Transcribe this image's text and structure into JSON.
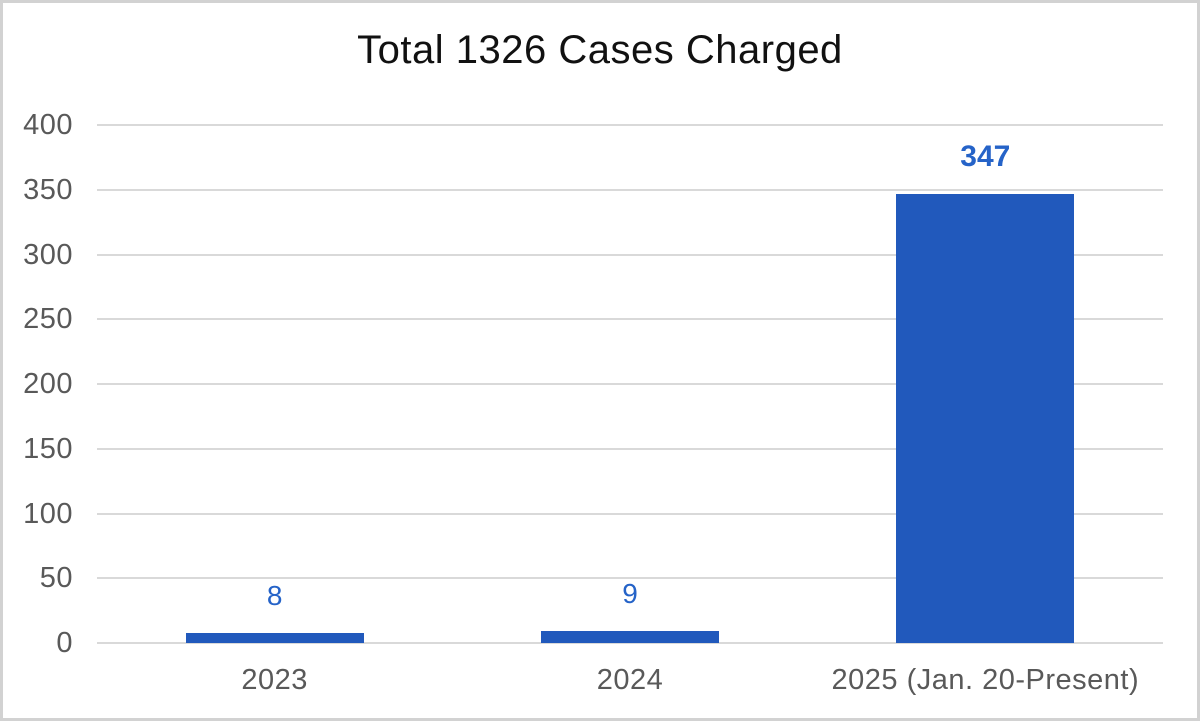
{
  "chart_data": {
    "type": "bar",
    "title": "Total 1326 Cases Charged",
    "categories": [
      "2023",
      "2024",
      "2025 (Jan. 20-Present)"
    ],
    "values": [
      8,
      9,
      347
    ],
    "data_labels": [
      {
        "text": "8",
        "bold": false
      },
      {
        "text": "9",
        "bold": false
      },
      {
        "text": "347",
        "bold": true
      }
    ],
    "xlabel": "",
    "ylabel": "",
    "ylim": [
      0,
      400
    ],
    "yticks": [
      0,
      50,
      100,
      150,
      200,
      250,
      300,
      350,
      400
    ],
    "grid": true,
    "legend_position": "none",
    "colors": {
      "bar": "#2159bc",
      "data_label": "#2563c8",
      "axis_text": "#595959",
      "gridline": "#d9d9d9",
      "title": "#111111",
      "background": "#ffffff",
      "frame_border": "#d2d2d2"
    }
  }
}
